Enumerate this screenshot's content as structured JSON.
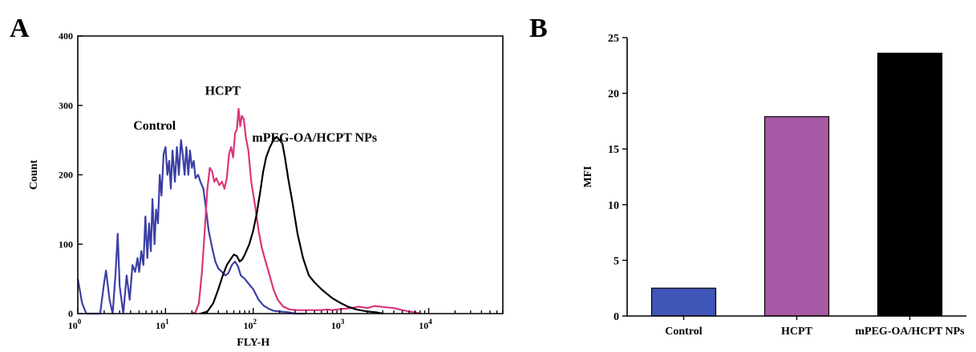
{
  "chart_data": [
    {
      "panel": "A",
      "type": "line",
      "xlabel": "FLY-H",
      "ylabel": "Count",
      "xscale": "log",
      "xlim": [
        1,
        70000
      ],
      "ylim": [
        0,
        400
      ],
      "x_ticks": [
        {
          "value": 1,
          "base": "10",
          "exp": "0"
        },
        {
          "value": 10,
          "base": "10",
          "exp": "1"
        },
        {
          "value": 100,
          "base": "10",
          "exp": "2"
        },
        {
          "value": 1000,
          "base": "10",
          "exp": "3"
        },
        {
          "value": 10000,
          "base": "10",
          "exp": "4"
        }
      ],
      "y_ticks": [
        0,
        100,
        200,
        300,
        400
      ],
      "annotations": [
        {
          "text": "Control",
          "x": 7.5,
          "y": 265
        },
        {
          "text": "HCPT",
          "x": 45,
          "y": 315
        },
        {
          "text": "mPEG-OA/HCPT NPs",
          "x": 500,
          "y": 248
        }
      ],
      "series": [
        {
          "color": "#3b3fa5",
          "points": [
            [
              1.0,
              50
            ],
            [
              1.12,
              15
            ],
            [
              1.25,
              0
            ],
            [
              1.5,
              0
            ],
            [
              1.8,
              0
            ],
            [
              2.0,
              45
            ],
            [
              2.1,
              62
            ],
            [
              2.3,
              20
            ],
            [
              2.5,
              0
            ],
            [
              2.7,
              60
            ],
            [
              2.85,
              115
            ],
            [
              3.0,
              40
            ],
            [
              3.3,
              0
            ],
            [
              3.6,
              55
            ],
            [
              3.9,
              20
            ],
            [
              4.2,
              70
            ],
            [
              4.5,
              60
            ],
            [
              4.8,
              80
            ],
            [
              5.0,
              60
            ],
            [
              5.3,
              90
            ],
            [
              5.6,
              70
            ],
            [
              5.9,
              140
            ],
            [
              6.2,
              80
            ],
            [
              6.5,
              130
            ],
            [
              6.8,
              90
            ],
            [
              7.1,
              165
            ],
            [
              7.5,
              100
            ],
            [
              7.8,
              150
            ],
            [
              8.2,
              130
            ],
            [
              8.6,
              200
            ],
            [
              9.0,
              170
            ],
            [
              9.5,
              230
            ],
            [
              10.0,
              240
            ],
            [
              10.5,
              200
            ],
            [
              11.0,
              220
            ],
            [
              11.5,
              180
            ],
            [
              12.0,
              235
            ],
            [
              12.8,
              190
            ],
            [
              13.5,
              240
            ],
            [
              14.2,
              200
            ],
            [
              15.0,
              250
            ],
            [
              15.7,
              230
            ],
            [
              16.5,
              200
            ],
            [
              17.3,
              240
            ],
            [
              18.2,
              200
            ],
            [
              19.0,
              235
            ],
            [
              20.0,
              210
            ],
            [
              21.0,
              220
            ],
            [
              22.0,
              195
            ],
            [
              23.5,
              200
            ],
            [
              25.0,
              190
            ],
            [
              27.0,
              180
            ],
            [
              29.0,
              150
            ],
            [
              31.0,
              120
            ],
            [
              34.0,
              95
            ],
            [
              37.0,
              75
            ],
            [
              40.0,
              65
            ],
            [
              44.0,
              60
            ],
            [
              48.0,
              55
            ],
            [
              52.0,
              58
            ],
            [
              57.0,
              70
            ],
            [
              62.0,
              75
            ],
            [
              67.0,
              68
            ],
            [
              72.0,
              55
            ],
            [
              80.0,
              50
            ],
            [
              90.0,
              42
            ],
            [
              100.0,
              35
            ],
            [
              115.0,
              20
            ],
            [
              130.0,
              12
            ],
            [
              150.0,
              7
            ],
            [
              170.0,
              4
            ],
            [
              200.0,
              3
            ],
            [
              250.0,
              2
            ],
            [
              300.0,
              0
            ],
            [
              400.0,
              0
            ]
          ]
        },
        {
          "color": "#d9347c",
          "points": [
            [
              20.0,
              0
            ],
            [
              22.0,
              2
            ],
            [
              24.0,
              15
            ],
            [
              26.0,
              60
            ],
            [
              28.0,
              120
            ],
            [
              30.0,
              180
            ],
            [
              32.0,
              210
            ],
            [
              34.0,
              205
            ],
            [
              36.0,
              190
            ],
            [
              38.0,
              195
            ],
            [
              41.0,
              185
            ],
            [
              44.0,
              190
            ],
            [
              47.0,
              180
            ],
            [
              50.0,
              195
            ],
            [
              53.0,
              230
            ],
            [
              56.0,
              240
            ],
            [
              59.0,
              225
            ],
            [
              62.0,
              260
            ],
            [
              65.0,
              265
            ],
            [
              68.0,
              295
            ],
            [
              71.0,
              270
            ],
            [
              74.0,
              285
            ],
            [
              78.0,
              280
            ],
            [
              82.0,
              255
            ],
            [
              88.0,
              235
            ],
            [
              95.0,
              190
            ],
            [
              105.0,
              155
            ],
            [
              115.0,
              120
            ],
            [
              125.0,
              95
            ],
            [
              135.0,
              80
            ],
            [
              150.0,
              60
            ],
            [
              170.0,
              35
            ],
            [
              190.0,
              20
            ],
            [
              220.0,
              10
            ],
            [
              260.0,
              6
            ],
            [
              320.0,
              5
            ],
            [
              400.0,
              5
            ],
            [
              500.0,
              5
            ],
            [
              600.0,
              5
            ],
            [
              700.0,
              6
            ],
            [
              800.0,
              5
            ],
            [
              900.0,
              6
            ],
            [
              1100.0,
              7
            ],
            [
              1300.0,
              8
            ],
            [
              1600.0,
              10
            ],
            [
              2000.0,
              8
            ],
            [
              2400.0,
              11
            ],
            [
              2800.0,
              10
            ],
            [
              3300.0,
              9
            ],
            [
              4000.0,
              8
            ],
            [
              5000.0,
              5
            ],
            [
              6000.0,
              3
            ],
            [
              7000.0,
              2
            ],
            [
              8000.0,
              0
            ]
          ]
        },
        {
          "color": "#000000",
          "points": [
            [
              25.0,
              0
            ],
            [
              30.0,
              3
            ],
            [
              35.0,
              15
            ],
            [
              40.0,
              35
            ],
            [
              45.0,
              55
            ],
            [
              50.0,
              70
            ],
            [
              55.0,
              78
            ],
            [
              60.0,
              85
            ],
            [
              65.0,
              83
            ],
            [
              70.0,
              75
            ],
            [
              75.0,
              78
            ],
            [
              80.0,
              85
            ],
            [
              90.0,
              100
            ],
            [
              100.0,
              120
            ],
            [
              110.0,
              145
            ],
            [
              120.0,
              175
            ],
            [
              130.0,
              205
            ],
            [
              140.0,
              225
            ],
            [
              155.0,
              240
            ],
            [
              170.0,
              250
            ],
            [
              185.0,
              255
            ],
            [
              200.0,
              250
            ],
            [
              215.0,
              245
            ],
            [
              230.0,
              225
            ],
            [
              250.0,
              195
            ],
            [
              280.0,
              160
            ],
            [
              320.0,
              115
            ],
            [
              370.0,
              80
            ],
            [
              430.0,
              55
            ],
            [
              500.0,
              45
            ],
            [
              600.0,
              35
            ],
            [
              700.0,
              28
            ],
            [
              800.0,
              22
            ],
            [
              1000.0,
              15
            ],
            [
              1200.0,
              10
            ],
            [
              1500.0,
              6
            ],
            [
              2000.0,
              3
            ],
            [
              2500.0,
              2
            ],
            [
              3000.0,
              0
            ]
          ]
        }
      ]
    },
    {
      "panel": "B",
      "type": "bar",
      "ylabel": "MFI",
      "ylim": [
        0,
        25
      ],
      "y_ticks": [
        0,
        5,
        10,
        15,
        20,
        25
      ],
      "categories": [
        "Control",
        "HCPT",
        "mPEG-OA/HCPT NPs"
      ],
      "values": [
        2.5,
        17.9,
        23.6
      ],
      "colors": [
        "#3f55b8",
        "#a659a4",
        "#000000"
      ]
    }
  ],
  "panel_labels": {
    "a": "A",
    "b": "B"
  }
}
